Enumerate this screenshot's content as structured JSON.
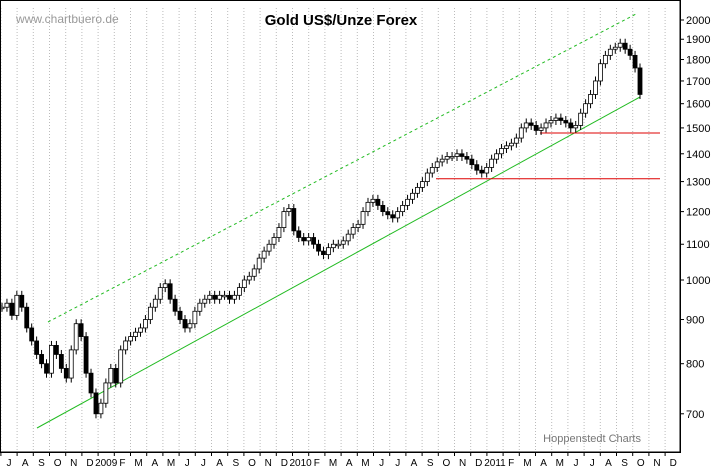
{
  "watermark": "www.chartbuero.de",
  "credit": "Hoppenstedt Charts",
  "chart_data": {
    "type": "candlestick",
    "title": "Gold US$/Unze Forex",
    "y_axis": {
      "scale": "log",
      "position": "right",
      "ylim": [
        640,
        2100
      ],
      "ticks": [
        700,
        800,
        900,
        1000,
        1100,
        1200,
        1300,
        1400,
        1500,
        1600,
        1700,
        1800,
        1900,
        2000
      ]
    },
    "x_axis": {
      "tick_labels": [
        "J",
        "A",
        "S",
        "O",
        "N",
        "D",
        "2009",
        "F",
        "M",
        "A",
        "M",
        "J",
        "J",
        "A",
        "S",
        "O",
        "N",
        "D",
        "2010",
        "F",
        "M",
        "A",
        "M",
        "J",
        "J",
        "A",
        "S",
        "O",
        "N",
        "D",
        "2011",
        "F",
        "M",
        "A",
        "M",
        "J",
        "J",
        "A",
        "S",
        "O",
        "N",
        "D"
      ]
    },
    "grid": "vertical dotted",
    "series": [
      {
        "type": "price",
        "approx_closes": [
          930,
          940,
          910,
          960,
          930,
          880,
          850,
          820,
          800,
          780,
          840,
          820,
          790,
          770,
          830,
          890,
          860,
          780,
          740,
          700,
          720,
          760,
          790,
          760,
          830,
          850,
          860,
          870,
          880,
          900,
          930,
          950,
          980,
          990,
          950,
          920,
          900,
          880,
          890,
          920,
          940,
          950,
          960,
          950,
          960,
          960,
          950,
          960,
          980,
          1000,
          1010,
          1030,
          1060,
          1080,
          1100,
          1120,
          1150,
          1200,
          1210,
          1140,
          1120,
          1110,
          1120,
          1100,
          1080,
          1070,
          1090,
          1100,
          1100,
          1110,
          1130,
          1150,
          1160,
          1200,
          1230,
          1240,
          1220,
          1200,
          1190,
          1180,
          1200,
          1220,
          1240,
          1260,
          1280,
          1300,
          1330,
          1350,
          1370,
          1380,
          1390,
          1390,
          1400,
          1390,
          1380,
          1360,
          1340,
          1330,
          1350,
          1380,
          1400,
          1420,
          1430,
          1440,
          1460,
          1500,
          1520,
          1510,
          1490,
          1500,
          1520,
          1530,
          1540,
          1530,
          1520,
          1500,
          1510,
          1560,
          1600,
          1640,
          1700,
          1780,
          1820,
          1850,
          1860,
          1880,
          1850,
          1820,
          1760,
          1640
        ]
      }
    ],
    "trendlines": [
      {
        "kind": "support",
        "color": "#22bb22",
        "style": "solid"
      },
      {
        "kind": "channel-upper",
        "color": "#22bb22",
        "style": "dashed"
      }
    ],
    "horizontal_lines": [
      {
        "value": 1310,
        "color": "#dd0000"
      },
      {
        "value": 1480,
        "color": "#dd0000"
      }
    ]
  }
}
